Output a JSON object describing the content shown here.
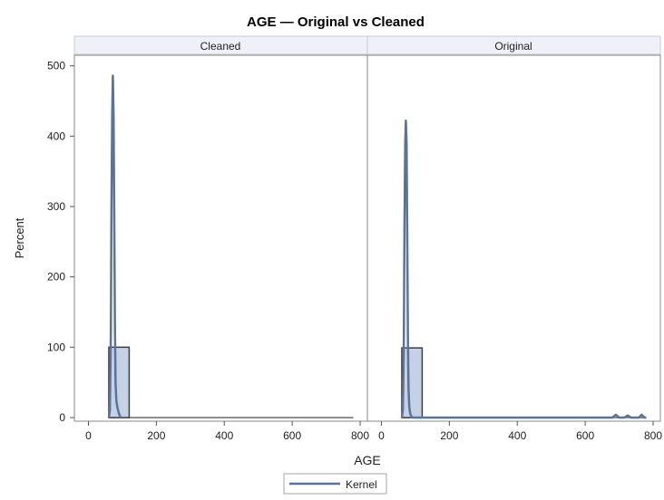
{
  "chart_data": {
    "type": "histogram-panel",
    "title": "AGE — Original vs Cleaned",
    "xlabel": "AGE",
    "ylabel": "Percent",
    "xlim": [
      -20,
      800
    ],
    "ylim": [
      0,
      515
    ],
    "x_ticks": [
      0,
      200,
      400,
      600,
      800
    ],
    "y_ticks": [
      0,
      100,
      200,
      300,
      400,
      500
    ],
    "grid": false,
    "legend": {
      "placement": "bottom-center",
      "entries": [
        "Kernel"
      ]
    },
    "colors": {
      "bar_fill": "#c5d2e6",
      "bar_stroke": "#3f3f3f",
      "kernel_line": "#5b7398",
      "panel_header": "#eef1f8"
    },
    "panels": [
      {
        "name": "Cleaned",
        "bars": [
          {
            "x_start": 60,
            "x_end": 120,
            "percent": 100
          }
        ],
        "baseline_range": [
          60,
          780
        ],
        "kernel": [
          [
            60,
            0
          ],
          [
            63,
            10
          ],
          [
            66,
            120
          ],
          [
            68,
            300
          ],
          [
            70,
            430
          ],
          [
            72,
            486
          ],
          [
            74,
            430
          ],
          [
            76,
            300
          ],
          [
            78,
            130
          ],
          [
            80,
            50
          ],
          [
            82,
            25
          ],
          [
            85,
            15
          ],
          [
            90,
            5
          ],
          [
            95,
            0
          ]
        ]
      },
      {
        "name": "Original",
        "bars": [
          {
            "x_start": 60,
            "x_end": 120,
            "percent": 99
          }
        ],
        "baseline_range": [
          60,
          780
        ],
        "kernel": [
          [
            60,
            0
          ],
          [
            63,
            10
          ],
          [
            66,
            110
          ],
          [
            68,
            270
          ],
          [
            70,
            390
          ],
          [
            72,
            422
          ],
          [
            74,
            390
          ],
          [
            76,
            270
          ],
          [
            78,
            110
          ],
          [
            80,
            40
          ],
          [
            82,
            15
          ],
          [
            85,
            5
          ],
          [
            90,
            0
          ],
          [
            680,
            0
          ],
          [
            690,
            4
          ],
          [
            700,
            0
          ],
          [
            715,
            0
          ],
          [
            725,
            3
          ],
          [
            735,
            0
          ],
          [
            758,
            0
          ],
          [
            766,
            4
          ],
          [
            774,
            0
          ],
          [
            780,
            0
          ]
        ]
      }
    ]
  }
}
